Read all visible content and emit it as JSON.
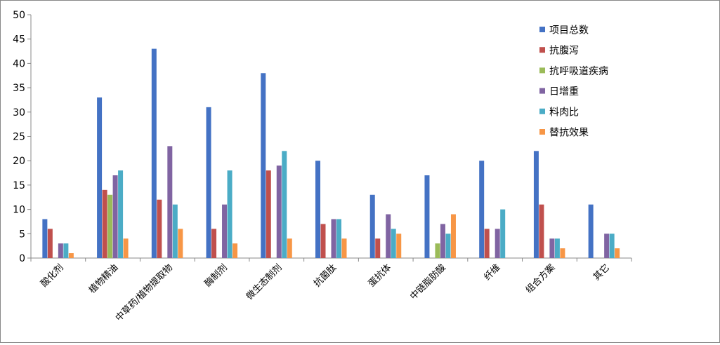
{
  "chart_data": {
    "type": "bar",
    "categories": [
      "酸化剂",
      "植物精油",
      "中草药/植物提取物",
      "酶制剂",
      "微生态制剂",
      "抗菌肽",
      "蛋抗体",
      "中链脂肪酸",
      "纤维",
      "组合方案",
      "其它"
    ],
    "ylim": [
      0,
      50
    ],
    "yticks": [
      0,
      5,
      10,
      15,
      20,
      25,
      30,
      35,
      40,
      45,
      50
    ],
    "legend_position": "top-right",
    "grid": false,
    "series": [
      {
        "name": "项目总数",
        "color": "#4472C4",
        "values": [
          8,
          33,
          43,
          31,
          38,
          20,
          13,
          17,
          20,
          22,
          11
        ]
      },
      {
        "name": "抗腹泻",
        "color": "#C0504D",
        "values": [
          6,
          14,
          12,
          6,
          18,
          7,
          4,
          0,
          6,
          11,
          0
        ]
      },
      {
        "name": "抗呼吸道疾病",
        "color": "#9BBB59",
        "values": [
          0,
          13,
          0,
          0,
          0,
          0,
          0,
          3,
          0,
          0,
          0
        ]
      },
      {
        "name": "日增重",
        "color": "#8064A2",
        "values": [
          3,
          17,
          23,
          11,
          19,
          8,
          9,
          7,
          6,
          4,
          5
        ]
      },
      {
        "name": "料肉比",
        "color": "#4BACC6",
        "values": [
          3,
          18,
          11,
          18,
          22,
          8,
          6,
          5,
          10,
          4,
          5
        ]
      },
      {
        "name": "替抗效果",
        "color": "#F79646",
        "values": [
          1,
          4,
          6,
          3,
          4,
          4,
          5,
          9,
          0,
          2,
          2
        ]
      }
    ]
  }
}
